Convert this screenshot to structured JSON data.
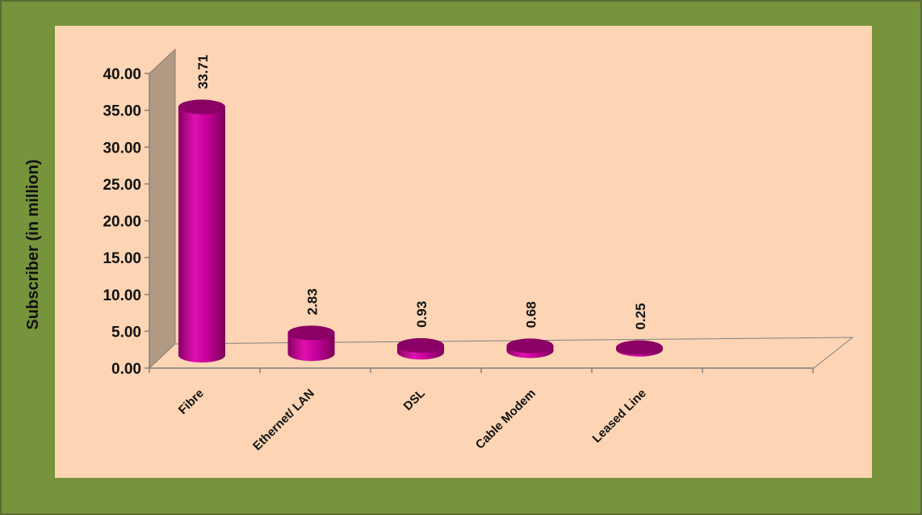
{
  "chart_data": {
    "type": "bar",
    "categories": [
      "Fibre",
      "Ethernet/ LAN",
      "DSL",
      "Cable Modem",
      "Leased Line"
    ],
    "values": [
      33.71,
      2.83,
      0.93,
      0.68,
      0.25
    ],
    "value_labels": [
      "33.71",
      "2.83",
      "0.93",
      "0.68",
      "0.25"
    ],
    "ylabel": "Subscriber (in million)",
    "xlabel": "",
    "title": "",
    "ylim": [
      0,
      40
    ],
    "yticks": [
      "0.00",
      "5.00",
      "10.00",
      "15.00",
      "20.00",
      "25.00",
      "30.00",
      "35.00",
      "40.00"
    ],
    "grid": false,
    "style": "3d-cylinder"
  },
  "colors": {
    "outer_background": "#77933c",
    "plot_background": "#fdd5b4",
    "back_wall": "#b09a84",
    "bar": "#cc0099",
    "bar_dark": "#8a0064"
  }
}
